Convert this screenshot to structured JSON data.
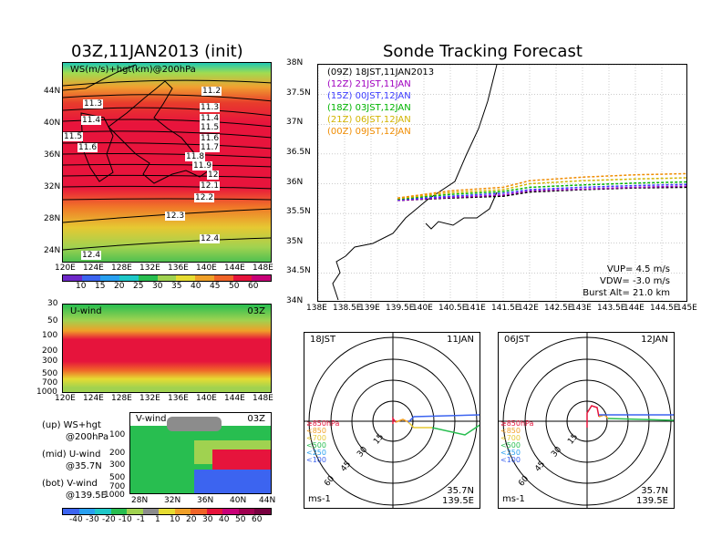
{
  "titles": {
    "left": "03Z,11JAN2013 (init)",
    "right": "Sonde Tracking Forecast"
  },
  "map_panel": {
    "label": "WS(m/s)+hgt(km)@200hPa",
    "xticks": [
      "120E",
      "124E",
      "128E",
      "132E",
      "136E",
      "140E",
      "144E",
      "148E"
    ],
    "yticks": [
      "44N",
      "40N",
      "36N",
      "32N",
      "28N",
      "24N"
    ],
    "contours": [
      "11.2",
      "11.3",
      "11.3",
      "11.4",
      "11.4",
      "11.5",
      "11.5",
      "11.6",
      "11.6",
      "11.7",
      "11.8",
      "11.9",
      "12",
      "12.1",
      "12.2",
      "12.3",
      "12.4",
      "12.4"
    ],
    "colorbar": [
      "10",
      "15",
      "20",
      "25",
      "30",
      "35",
      "40",
      "45",
      "50",
      "60"
    ]
  },
  "u_panel": {
    "label": "U-wind",
    "time": "03Z",
    "yticks": [
      "30",
      "50",
      "100",
      "200",
      "300",
      "500",
      "700",
      "1000"
    ],
    "xticks": [
      "120E",
      "124E",
      "128E",
      "132E",
      "136E",
      "140E",
      "144E",
      "148E"
    ]
  },
  "v_panel": {
    "label": "V-wind",
    "time": "03Z",
    "yticks": [
      "100",
      "200",
      "300",
      "500",
      "700",
      "1000"
    ],
    "xticks": [
      "28N",
      "32N",
      "36N",
      "40N",
      "44N"
    ],
    "colorbar": [
      "-40",
      "-30",
      "-20",
      "-10",
      "-1",
      "1",
      "10",
      "20",
      "30",
      "40",
      "50",
      "60"
    ]
  },
  "notes": [
    {
      "a": "(up) WS+hgt",
      "b": "@200hPa"
    },
    {
      "a": "(mid) U-wind",
      "b": "@35.7N"
    },
    {
      "a": "(bot) V-wind",
      "b": "@139.5E"
    }
  ],
  "track_panel": {
    "xticks": [
      "138E",
      "138.5E",
      "139E",
      "139.5E",
      "140E",
      "140.5E",
      "141E",
      "141.5E",
      "142E",
      "142.5E",
      "143E",
      "143.5E",
      "144E",
      "144.5E",
      "145E"
    ],
    "yticks": [
      "38N",
      "37.5N",
      "37N",
      "36.5N",
      "36N",
      "35.5N",
      "35N",
      "34.5N",
      "34N"
    ],
    "legend": [
      {
        "z": "(09Z)",
        "t": "18JST,11JAN2013",
        "color": "#000000"
      },
      {
        "z": "(12Z)",
        "t": "21JST,11JAN",
        "color": "#a000c0"
      },
      {
        "z": "(15Z)",
        "t": "00JST,12JAN",
        "color": "#3c3cff"
      },
      {
        "z": "(18Z)",
        "t": "03JST,12JAN",
        "color": "#00b400"
      },
      {
        "z": "(21Z)",
        "t": "06JST,12JAN",
        "color": "#d2b400"
      },
      {
        "z": "(00Z)",
        "t": "09JST,12JAN",
        "color": "#f08c00"
      }
    ],
    "params": [
      "VUP= 4.5 m/s",
      "VDW= -3.0 m/s",
      "Burst Alt= 21.0 km"
    ]
  },
  "hodographs": [
    {
      "time": "18JST",
      "date": "11JAN",
      "rings": [
        "15",
        "30",
        "45",
        "60"
      ],
      "unit": "ms-1",
      "lat": "35.7N",
      "lon": "139.5E"
    },
    {
      "time": "06JST",
      "date": "12JAN",
      "rings": [
        "15",
        "30",
        "45",
        "60"
      ],
      "unit": "ms-1",
      "lat": "35.7N",
      "lon": "139.5E"
    }
  ],
  "hodo_levels": [
    "≥850hPa",
    "<850",
    "<700",
    "<500",
    "<250",
    "<100"
  ],
  "chart_data": {
    "type": "line",
    "title": "Sonde Tracking Forecast",
    "xlabel": "",
    "ylabel": "",
    "xlim": [
      138,
      145
    ],
    "ylim": [
      34,
      38
    ],
    "series": [
      {
        "name": "(09Z) 18JST,11JAN2013",
        "color": "#000000",
        "x": [
          139.5,
          140.5,
          141.5,
          142.0,
          143.0,
          144.0,
          145.0
        ],
        "y": [
          35.72,
          35.76,
          35.79,
          35.86,
          35.9,
          35.93,
          35.94
        ]
      },
      {
        "name": "(12Z) 21JST,11JAN",
        "color": "#a000c0",
        "x": [
          139.5,
          140.5,
          141.5,
          142.0,
          143.0,
          144.0,
          145.0
        ],
        "y": [
          35.72,
          35.77,
          35.81,
          35.88,
          35.91,
          35.94,
          35.96
        ]
      },
      {
        "name": "(15Z) 00JST,12JAN",
        "color": "#3c3cff",
        "x": [
          139.5,
          140.5,
          141.5,
          142.0,
          143.0,
          144.0,
          145.0
        ],
        "y": [
          35.73,
          35.79,
          35.84,
          35.9,
          35.94,
          35.97,
          35.99
        ]
      },
      {
        "name": "(18Z) 03JST,12JAN",
        "color": "#00b400",
        "x": [
          139.5,
          140.5,
          141.5,
          142.0,
          143.0,
          144.0,
          145.0
        ],
        "y": [
          35.74,
          35.82,
          35.87,
          35.94,
          35.98,
          36.01,
          36.03
        ]
      },
      {
        "name": "(21Z) 06JST,12JAN",
        "color": "#d2b400",
        "x": [
          139.5,
          140.5,
          141.5,
          142.0,
          143.0,
          144.0,
          145.0
        ],
        "y": [
          35.75,
          35.85,
          35.9,
          36.0,
          36.05,
          36.08,
          36.1
        ]
      },
      {
        "name": "(00Z) 09JST,12JAN",
        "color": "#f08c00",
        "x": [
          139.5,
          140.5,
          141.5,
          142.0,
          143.0,
          144.0,
          145.0
        ],
        "y": [
          35.76,
          35.88,
          35.94,
          36.05,
          36.11,
          36.15,
          36.17
        ]
      }
    ]
  }
}
